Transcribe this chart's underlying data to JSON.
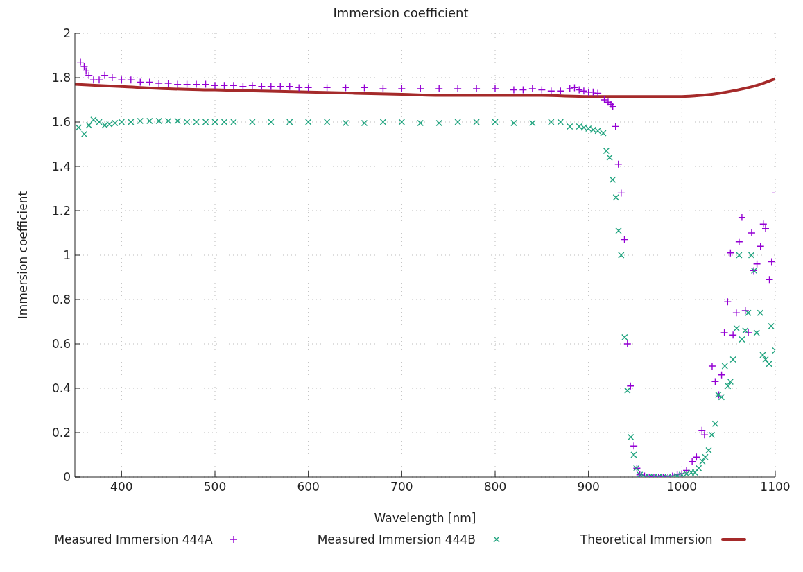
{
  "chart_data": {
    "type": "scatter",
    "title": "Immersion coefficient",
    "xlabel": "Wavelength [nm]",
    "ylabel": "Immersion coefficient",
    "xlim": [
      350,
      1100
    ],
    "xticks": [
      400,
      500,
      600,
      700,
      800,
      900,
      1000,
      1100
    ],
    "ylim": [
      0,
      2
    ],
    "yticks": [
      0,
      0.2,
      0.4,
      0.6,
      0.8,
      1,
      1.2,
      1.4,
      1.6,
      1.8,
      2
    ],
    "grid": true,
    "legend": "bottom",
    "series": [
      {
        "name": "Measured Immersion 444A",
        "marker": "cross",
        "color": "#9400d3",
        "x": [
          356,
          360,
          362,
          365,
          370,
          376,
          382,
          390,
          400,
          410,
          420,
          430,
          440,
          450,
          460,
          470,
          480,
          490,
          500,
          510,
          520,
          530,
          540,
          550,
          560,
          570,
          580,
          590,
          600,
          620,
          640,
          660,
          680,
          700,
          720,
          740,
          760,
          780,
          800,
          820,
          830,
          840,
          850,
          860,
          870,
          880,
          885,
          890,
          895,
          900,
          905,
          910,
          917,
          921,
          924,
          926,
          929,
          932,
          935,
          938.5,
          941.7,
          945,
          948.6,
          951.8,
          955,
          960,
          965,
          970,
          975,
          980,
          985,
          990,
          995,
          1000,
          1005,
          1011,
          1015.6,
          1021.5,
          1024.2,
          1032.4,
          1035.7,
          1039.5,
          1042.5,
          1045.5,
          1049,
          1052,
          1054.8,
          1058.3,
          1061.3,
          1064.3,
          1067.9,
          1071.1,
          1074.7,
          1077,
          1080.4,
          1084.2,
          1087.2,
          1089.6,
          1093.7,
          1096.1,
          1100
        ],
        "values": [
          1.87,
          1.85,
          1.83,
          1.81,
          1.79,
          1.79,
          1.81,
          1.8,
          1.79,
          1.79,
          1.78,
          1.78,
          1.775,
          1.775,
          1.77,
          1.77,
          1.77,
          1.77,
          1.765,
          1.765,
          1.765,
          1.76,
          1.765,
          1.76,
          1.76,
          1.76,
          1.76,
          1.755,
          1.755,
          1.755,
          1.755,
          1.755,
          1.75,
          1.75,
          1.75,
          1.75,
          1.75,
          1.75,
          1.75,
          1.745,
          1.745,
          1.75,
          1.745,
          1.74,
          1.74,
          1.75,
          1.755,
          1.745,
          1.74,
          1.735,
          1.735,
          1.73,
          1.7,
          1.69,
          1.68,
          1.67,
          1.58,
          1.41,
          1.28,
          1.07,
          0.6,
          0.41,
          0.14,
          0.04,
          0.01,
          0.005,
          0,
          0,
          0,
          0,
          0,
          0.005,
          0.01,
          0.015,
          0.03,
          0.07,
          0.09,
          0.21,
          0.19,
          0.5,
          0.43,
          0.37,
          0.46,
          0.65,
          0.79,
          1.01,
          0.64,
          0.74,
          1.06,
          1.17,
          0.75,
          0.65,
          1.1,
          0.93,
          0.96,
          1.04,
          1.14,
          1.12,
          0.89,
          0.97,
          1.28
        ]
      },
      {
        "name": "Measured Immersion 444B",
        "marker": "cross",
        "color": "#1fa37e",
        "x": [
          354,
          360,
          365,
          370,
          376,
          382,
          387,
          393,
          400,
          410,
          420,
          430,
          440,
          450,
          460,
          470,
          480,
          490,
          500,
          510,
          520,
          540,
          560,
          580,
          600,
          620,
          640,
          660,
          680,
          700,
          720,
          740,
          760,
          780,
          800,
          820,
          840,
          860,
          870,
          880,
          890,
          895,
          900,
          905,
          910,
          915.8,
          919.1,
          922.6,
          925.9,
          929.4,
          932.2,
          935,
          938.7,
          941.7,
          945.3,
          948.5,
          951.3,
          955,
          960,
          965,
          970,
          975,
          980,
          985,
          990,
          995,
          1000,
          1005,
          1010,
          1014,
          1018,
          1022,
          1025,
          1028.7,
          1032,
          1035.7,
          1039,
          1042.4,
          1046,
          1049.3,
          1052,
          1054.8,
          1058.6,
          1061.3,
          1064.3,
          1067.9,
          1071,
          1074.4,
          1077.4,
          1080.1,
          1083.9,
          1086.6,
          1089.6,
          1093.4,
          1095.6,
          1100
        ],
        "values": [
          1.575,
          1.545,
          1.585,
          1.61,
          1.6,
          1.585,
          1.59,
          1.595,
          1.6,
          1.6,
          1.605,
          1.605,
          1.605,
          1.605,
          1.605,
          1.6,
          1.6,
          1.6,
          1.6,
          1.6,
          1.6,
          1.6,
          1.6,
          1.6,
          1.6,
          1.6,
          1.595,
          1.595,
          1.6,
          1.6,
          1.595,
          1.595,
          1.6,
          1.6,
          1.6,
          1.595,
          1.595,
          1.6,
          1.6,
          1.58,
          1.58,
          1.575,
          1.57,
          1.565,
          1.56,
          1.55,
          1.47,
          1.44,
          1.34,
          1.26,
          1.11,
          1.0,
          0.63,
          0.39,
          0.18,
          0.1,
          0.04,
          0.01,
          0,
          0,
          0,
          0,
          0,
          0,
          0,
          0.005,
          0.01,
          0.015,
          0.02,
          0.02,
          0.04,
          0.07,
          0.09,
          0.12,
          0.19,
          0.24,
          0.37,
          0.36,
          0.5,
          0.41,
          0.43,
          0.53,
          0.67,
          1.0,
          0.62,
          0.66,
          0.74,
          1.0,
          0.93,
          0.65,
          0.74,
          0.55,
          0.53,
          0.51,
          0.68,
          0.57
        ]
      },
      {
        "name": "Theoretical Immersion",
        "type": "line",
        "color": "#a52a2a",
        "x": [
          350,
          400,
          450,
          500,
          550,
          600,
          650,
          700,
          750,
          800,
          850,
          900,
          950,
          1000,
          1020,
          1040,
          1060,
          1080,
          1100
        ],
        "values": [
          1.77,
          1.76,
          1.75,
          1.745,
          1.74,
          1.735,
          1.73,
          1.725,
          1.72,
          1.72,
          1.72,
          1.715,
          1.715,
          1.715,
          1.72,
          1.73,
          1.745,
          1.765,
          1.795
        ]
      }
    ]
  }
}
